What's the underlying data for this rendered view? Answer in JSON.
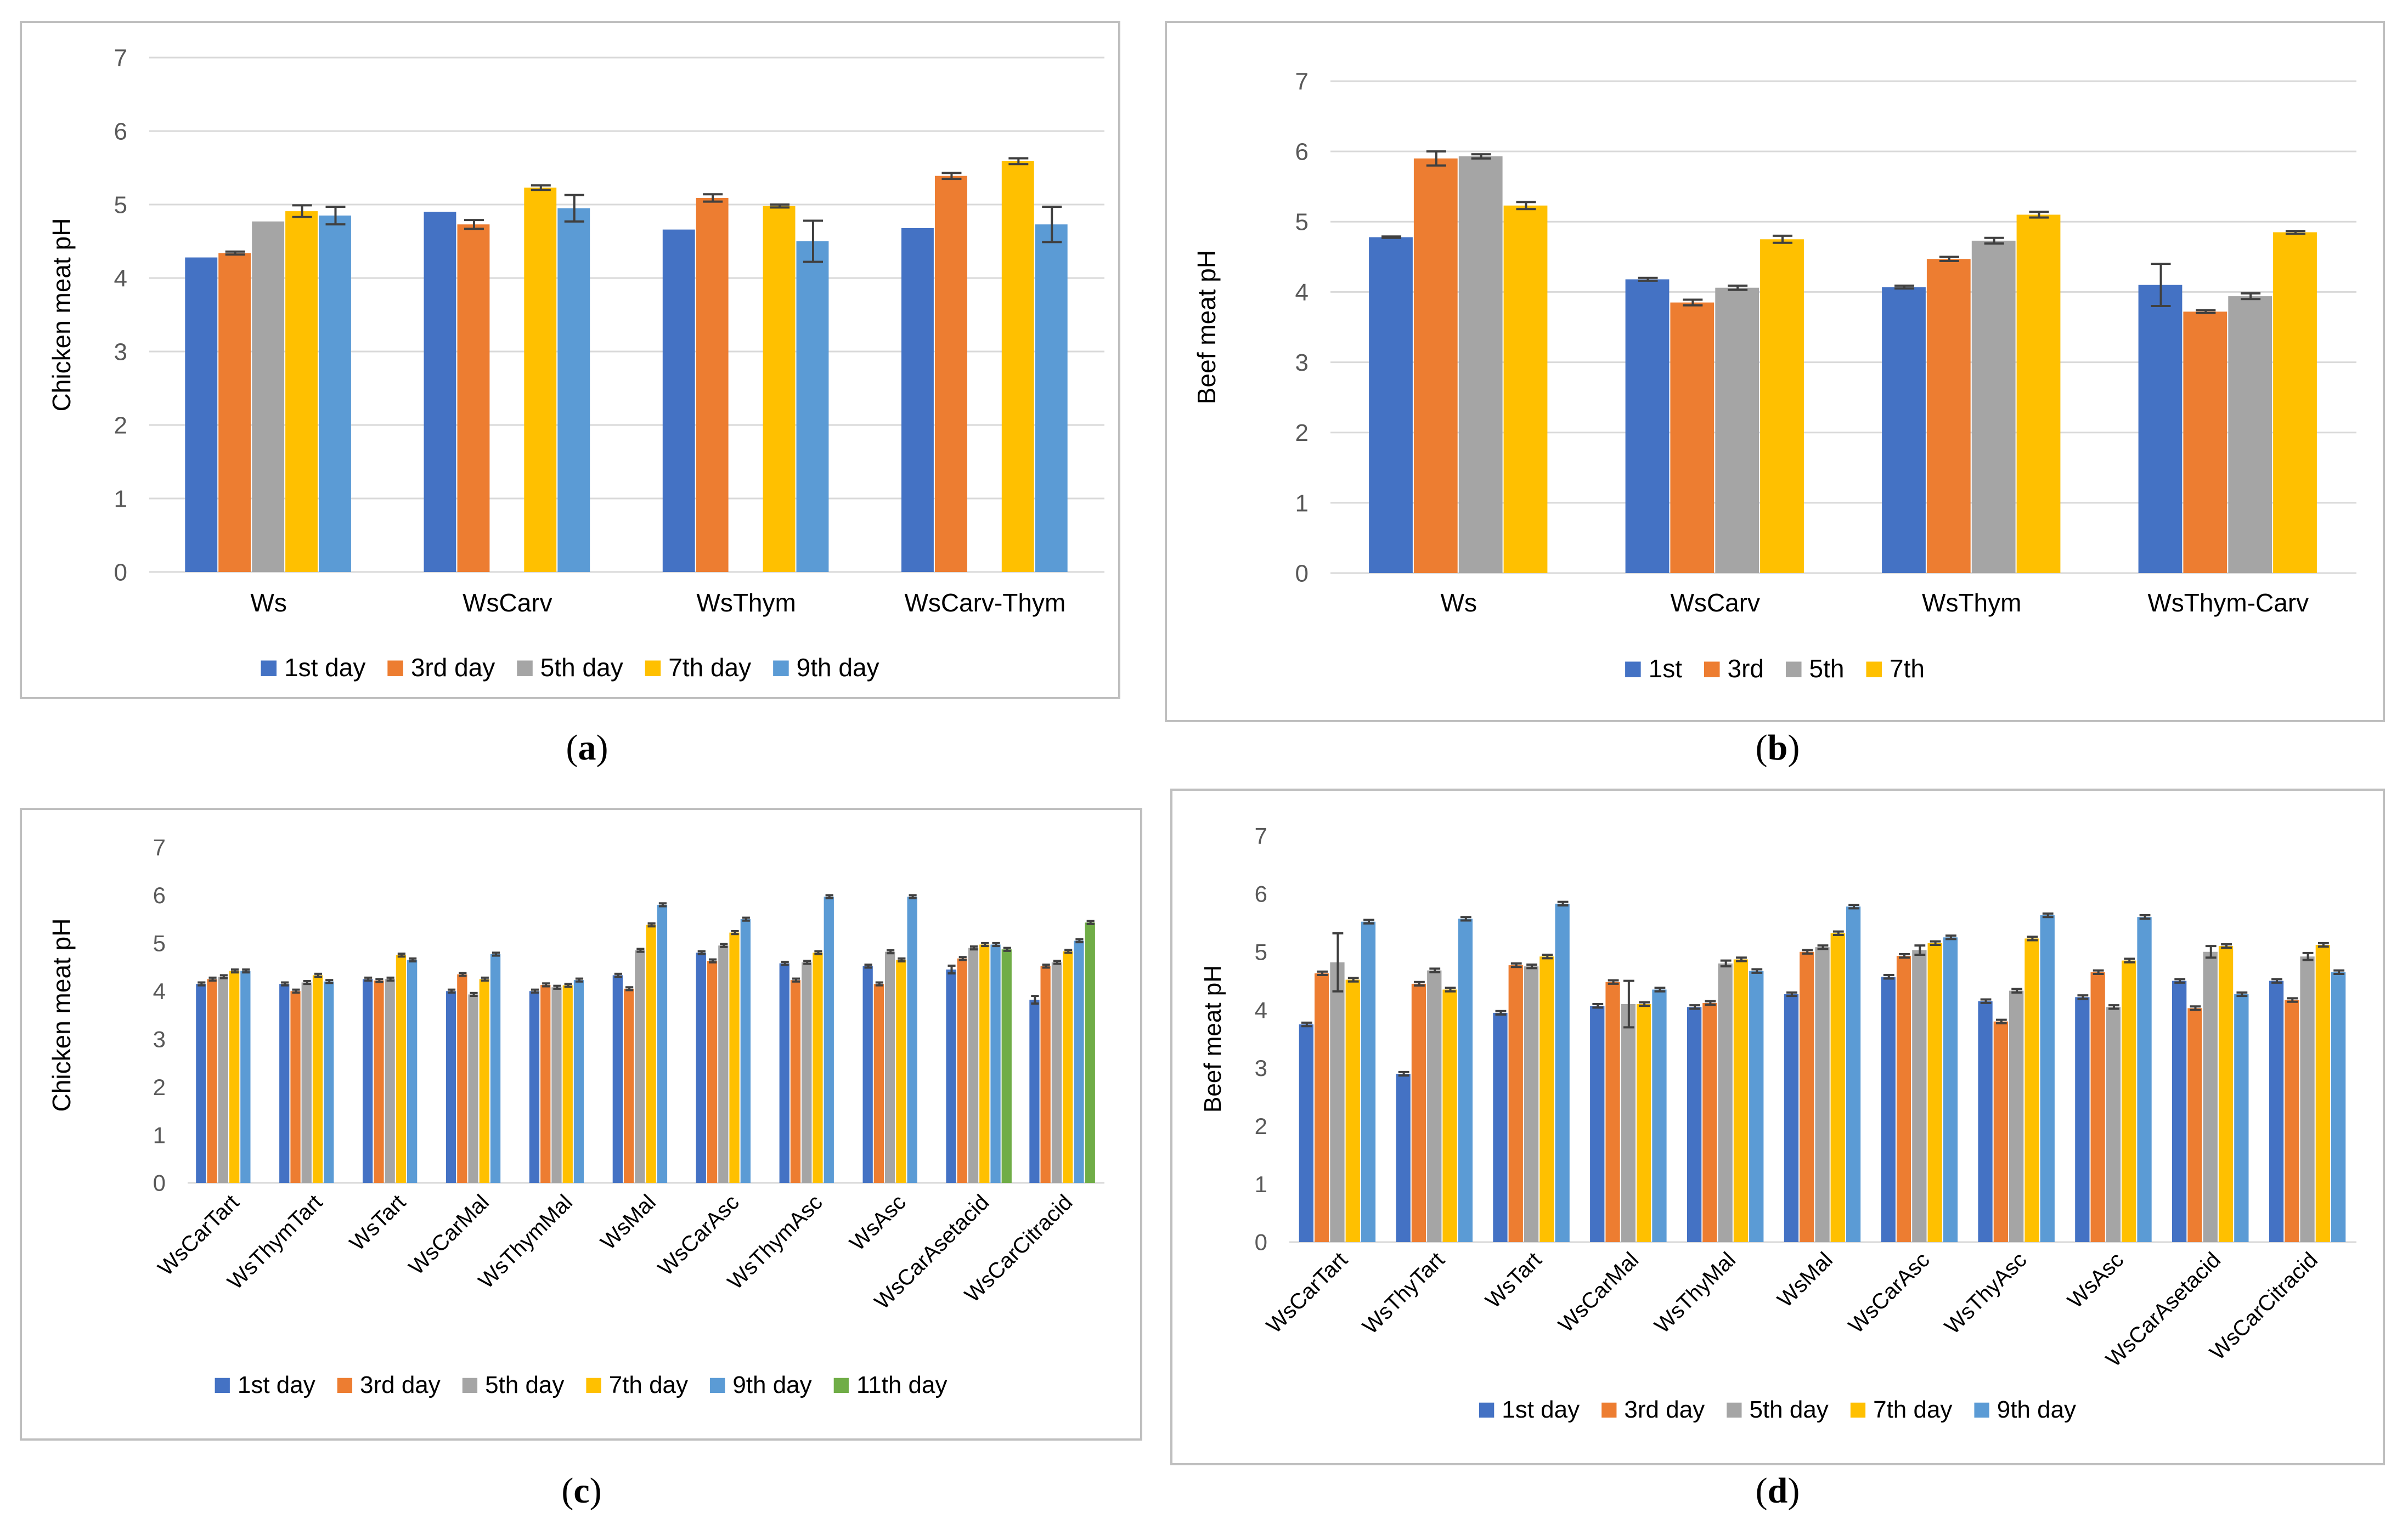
{
  "colors": {
    "s1": "#4472C4",
    "s2": "#ED7D31",
    "s3": "#A5A5A5",
    "s4": "#FFC000",
    "s5": "#5B9BD5",
    "s6": "#70AD47",
    "grid": "#D9D9D9",
    "axis_text": "#595959",
    "frame": "#BFBFBF",
    "error": "#404040"
  },
  "chart_data": [
    {
      "id": "a",
      "type": "bar",
      "panel_label": "a",
      "ylabel": "Chicken meat  pH",
      "xlabel": "",
      "ylim": [
        0,
        7
      ],
      "yticks": [
        0,
        1,
        2,
        3,
        4,
        5,
        6,
        7
      ],
      "grid": true,
      "legend_position": "bottom",
      "categories": [
        "Ws",
        "WsCarv",
        "WsThym",
        "WsCarv-Thym"
      ],
      "series": [
        {
          "name": "1st day",
          "values": [
            4.28,
            4.9,
            4.66,
            4.68
          ],
          "errors": [
            0,
            0,
            0,
            0
          ]
        },
        {
          "name": "3rd day",
          "values": [
            4.34,
            4.73,
            5.09,
            5.39
          ],
          "errors": [
            0.02,
            0.06,
            0.05,
            0.04
          ]
        },
        {
          "name": "5th day",
          "values": [
            4.77,
            null,
            null,
            null
          ],
          "errors": [
            0,
            0,
            0,
            0
          ]
        },
        {
          "name": "7th day",
          "values": [
            4.91,
            5.23,
            4.98,
            5.59
          ],
          "errors": [
            0.08,
            0.03,
            0.02,
            0.04
          ]
        },
        {
          "name": "9th day",
          "values": [
            4.85,
            4.95,
            4.5,
            4.73
          ],
          "errors": [
            0.12,
            0.18,
            0.28,
            0.24
          ]
        }
      ]
    },
    {
      "id": "b",
      "type": "bar",
      "panel_label": "b",
      "ylabel": "Beef meat pH",
      "xlabel": "",
      "ylim": [
        0,
        7
      ],
      "yticks": [
        0,
        1,
        2,
        3,
        4,
        5,
        6,
        7
      ],
      "grid": true,
      "legend_position": "bottom",
      "categories": [
        "Ws",
        "WsCarv",
        "WsThym",
        "WsThym-Carv"
      ],
      "series": [
        {
          "name": "1st",
          "values": [
            4.78,
            4.18,
            4.07,
            4.1
          ],
          "errors": [
            0.01,
            0.02,
            0.02,
            0.3
          ]
        },
        {
          "name": "3rd",
          "values": [
            5.9,
            3.85,
            4.47,
            3.72
          ],
          "errors": [
            0.1,
            0.04,
            0.03,
            0.02
          ]
        },
        {
          "name": "5th",
          "values": [
            5.93,
            4.06,
            4.73,
            3.94
          ],
          "errors": [
            0.03,
            0.03,
            0.04,
            0.04
          ]
        },
        {
          "name": "7th",
          "values": [
            5.23,
            4.75,
            5.1,
            4.85
          ],
          "errors": [
            0.05,
            0.05,
            0.04,
            0.02
          ]
        }
      ]
    },
    {
      "id": "c",
      "type": "bar",
      "panel_label": "c",
      "ylabel": "Chicken meat pH",
      "xlabel": "",
      "ylim": [
        0,
        7
      ],
      "yticks": [
        0,
        1,
        2,
        3,
        4,
        5,
        6,
        7
      ],
      "grid": false,
      "legend_position": "bottom",
      "categories": [
        "WsCarTart",
        "WsThymTart",
        "WsTart",
        "WsCarMal",
        "WsThymMal",
        "WsMal",
        "WsCarAsc",
        "WsThymAsc",
        "WsAsc",
        "WsCarAsetacid",
        "WsCarCitracid"
      ],
      "series": [
        {
          "name": "1st day",
          "values": [
            4.15,
            4.15,
            4.25,
            4.0,
            4.0,
            4.33,
            4.8,
            4.58,
            4.52,
            4.45,
            3.82
          ],
          "errors": [
            0.03,
            0.03,
            0.03,
            0.03,
            0.03,
            0.03,
            0.03,
            0.03,
            0.03,
            0.08,
            0.08
          ]
        },
        {
          "name": "3rd day",
          "values": [
            4.25,
            4.0,
            4.22,
            4.35,
            4.13,
            4.05,
            4.63,
            4.23,
            4.15,
            4.68,
            4.52
          ]
        },
        {
          "name": "5th day",
          "values": [
            4.3,
            4.18,
            4.25,
            3.93,
            4.08,
            4.85,
            4.95,
            4.6,
            4.82,
            4.9,
            4.6
          ]
        },
        {
          "name": "7th day",
          "values": [
            4.42,
            4.33,
            4.75,
            4.25,
            4.12,
            5.38,
            5.22,
            4.8,
            4.65,
            4.97,
            4.83
          ]
        },
        {
          "name": "9th day",
          "values": [
            4.42,
            4.2,
            4.65,
            4.77,
            4.23,
            5.8,
            5.5,
            5.97,
            5.97,
            4.97,
            5.05
          ]
        },
        {
          "name": "11th day",
          "values": [
            null,
            null,
            null,
            null,
            null,
            null,
            null,
            null,
            null,
            4.87,
            5.43
          ]
        }
      ]
    },
    {
      "id": "d",
      "type": "bar",
      "panel_label": "d",
      "ylabel": "Beef meat pH",
      "xlabel": "",
      "ylim": [
        0,
        7
      ],
      "yticks": [
        0,
        1,
        2,
        3,
        4,
        5,
        6,
        7
      ],
      "grid": false,
      "legend_position": "bottom",
      "categories": [
        "WsCarTart",
        "WsThyTart",
        "WsTart",
        "WsCarMal",
        "WsThyMal",
        "WsMal",
        "WsCarAsc",
        "WsThyAsc",
        "WsAsc",
        "WsCarAsetacid",
        "WsCarCitracid"
      ],
      "series": [
        {
          "name": "1st day",
          "values": [
            3.75,
            2.9,
            3.95,
            4.07,
            4.05,
            4.27,
            4.57,
            4.15,
            4.22,
            4.5,
            4.5
          ]
        },
        {
          "name": "3rd day",
          "values": [
            4.63,
            4.45,
            4.77,
            4.48,
            4.12,
            5.0,
            4.93,
            3.8,
            4.65,
            4.03,
            4.17
          ]
        },
        {
          "name": "5th day",
          "values": [
            4.82,
            4.68,
            4.75,
            4.1,
            4.8,
            5.08,
            5.03,
            4.33,
            4.05,
            5.0,
            4.92
          ],
          "errors": [
            0.5,
            0.03,
            0.03,
            0.4,
            0.05,
            0.03,
            0.08,
            0.03,
            0.03,
            0.1,
            0.06
          ]
        },
        {
          "name": "7th day",
          "values": [
            4.52,
            4.35,
            4.92,
            4.1,
            4.87,
            5.32,
            5.15,
            5.23,
            4.85,
            5.1,
            5.12
          ]
        },
        {
          "name": "9th day",
          "values": [
            5.52,
            5.57,
            5.83,
            4.35,
            4.67,
            5.78,
            5.25,
            5.63,
            5.6,
            4.27,
            4.65
          ]
        }
      ]
    }
  ]
}
